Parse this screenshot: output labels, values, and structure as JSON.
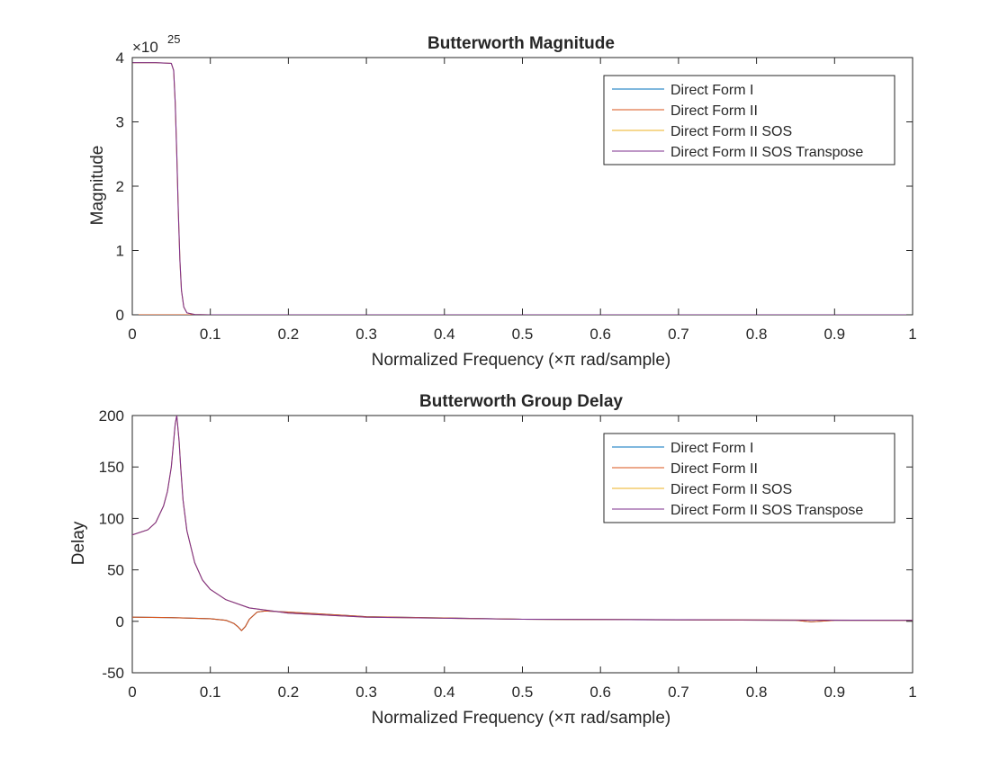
{
  "colors": {
    "direct_form_1": "#0072BD",
    "direct_form_2": "#D95319",
    "direct_form_2_sos": "#EDB120",
    "direct_form_2_sos_transpose": "#7E2F8E",
    "axes": "#262626",
    "background": "#ffffff"
  },
  "chart_data": [
    {
      "type": "line",
      "title": "Butterworth Magnitude",
      "xlabel": "Normalized Frequency (×π rad/sample)",
      "ylabel": "Magnitude",
      "exponent_label": "×10",
      "exponent_value": "25",
      "xlim": [
        0,
        1
      ],
      "ylim": [
        0,
        4
      ],
      "xticks": [
        0,
        0.1,
        0.2,
        0.3,
        0.4,
        0.5,
        0.6,
        0.7,
        0.8,
        0.9,
        1
      ],
      "xtick_labels": [
        "0",
        "0.1",
        "0.2",
        "0.3",
        "0.4",
        "0.5",
        "0.6",
        "0.7",
        "0.8",
        "0.9",
        "1"
      ],
      "yticks": [
        0,
        1,
        2,
        3,
        4
      ],
      "ytick_labels": [
        "0",
        "1",
        "2",
        "3",
        "4"
      ],
      "grid": false,
      "legend_position": "top-right",
      "series": [
        {
          "name": "Direct Form I",
          "color_key": "direct_form_1",
          "x": [
            0,
            1
          ],
          "y": [
            0.0,
            0.0
          ]
        },
        {
          "name": "Direct Form II",
          "color_key": "direct_form_2",
          "x": [
            0,
            1
          ],
          "y": [
            0.0,
            0.0
          ]
        },
        {
          "name": "Direct Form II SOS",
          "color_key": "direct_form_2_sos",
          "x": [
            0,
            0.03,
            0.05,
            0.053,
            0.055,
            0.057,
            0.059,
            0.061,
            0.063,
            0.066,
            0.07,
            0.08,
            0.1,
            0.2,
            0.5,
            1
          ],
          "y": [
            3.92,
            3.92,
            3.91,
            3.8,
            3.3,
            2.5,
            1.6,
            0.85,
            0.38,
            0.12,
            0.03,
            0.005,
            0.0,
            0.0,
            0.0,
            0.0
          ]
        },
        {
          "name": "Direct Form II SOS Transpose",
          "color_key": "direct_form_2_sos_transpose",
          "x": [
            0,
            0.03,
            0.05,
            0.053,
            0.055,
            0.057,
            0.059,
            0.061,
            0.063,
            0.066,
            0.07,
            0.08,
            0.1,
            0.2,
            0.5,
            1
          ],
          "y": [
            3.92,
            3.92,
            3.91,
            3.8,
            3.3,
            2.5,
            1.6,
            0.85,
            0.38,
            0.12,
            0.03,
            0.005,
            0.0,
            0.0,
            0.0,
            0.0
          ]
        }
      ]
    },
    {
      "type": "line",
      "title": "Butterworth Group Delay",
      "xlabel": "Normalized Frequency (×π rad/sample)",
      "ylabel": "Delay",
      "xlim": [
        0,
        1
      ],
      "ylim": [
        -50,
        200
      ],
      "xticks": [
        0,
        0.1,
        0.2,
        0.3,
        0.4,
        0.5,
        0.6,
        0.7,
        0.8,
        0.9,
        1
      ],
      "xtick_labels": [
        "0",
        "0.1",
        "0.2",
        "0.3",
        "0.4",
        "0.5",
        "0.6",
        "0.7",
        "0.8",
        "0.9",
        "1"
      ],
      "yticks": [
        -50,
        0,
        50,
        100,
        150,
        200
      ],
      "ytick_labels": [
        "-50",
        "0",
        "50",
        "100",
        "150",
        "200"
      ],
      "grid": false,
      "legend_position": "top-right",
      "series": [
        {
          "name": "Direct Form I",
          "color_key": "direct_form_1",
          "x": [
            0,
            0.05,
            0.1,
            0.12,
            0.13,
            0.135,
            0.14,
            0.145,
            0.15,
            0.16,
            0.17,
            0.2,
            0.3,
            0.5,
            0.85,
            0.87,
            0.9,
            1
          ],
          "y": [
            4,
            3.6,
            2.5,
            1,
            -2,
            -5,
            -9,
            -5,
            2,
            9,
            10,
            9,
            4.5,
            2,
            1,
            -0.5,
            1,
            1
          ]
        },
        {
          "name": "Direct Form II",
          "color_key": "direct_form_2",
          "x": [
            0,
            0.05,
            0.1,
            0.12,
            0.13,
            0.135,
            0.14,
            0.145,
            0.15,
            0.16,
            0.17,
            0.2,
            0.3,
            0.5,
            0.85,
            0.87,
            0.9,
            1
          ],
          "y": [
            4,
            3.6,
            2.5,
            1,
            -2,
            -5,
            -9,
            -5,
            2,
            9,
            10,
            9,
            4.5,
            2,
            1,
            -0.5,
            1,
            1
          ]
        },
        {
          "name": "Direct Form II SOS",
          "color_key": "direct_form_2_sos",
          "x": [
            0,
            0.02,
            0.03,
            0.04,
            0.045,
            0.05,
            0.053,
            0.055,
            0.057,
            0.06,
            0.062,
            0.065,
            0.07,
            0.08,
            0.09,
            0.1,
            0.12,
            0.15,
            0.2,
            0.3,
            0.4,
            0.5,
            0.7,
            1
          ],
          "y": [
            84,
            89,
            96,
            112,
            126,
            150,
            175,
            192,
            200,
            175,
            150,
            118,
            88,
            57,
            40,
            31,
            21,
            13,
            8,
            4,
            3,
            2,
            1.5,
            1
          ]
        },
        {
          "name": "Direct Form II SOS Transpose",
          "color_key": "direct_form_2_sos_transpose",
          "x": [
            0,
            0.02,
            0.03,
            0.04,
            0.045,
            0.05,
            0.053,
            0.055,
            0.057,
            0.06,
            0.062,
            0.065,
            0.07,
            0.08,
            0.09,
            0.1,
            0.12,
            0.15,
            0.2,
            0.3,
            0.4,
            0.5,
            0.7,
            1
          ],
          "y": [
            84,
            89,
            96,
            112,
            126,
            150,
            175,
            192,
            200,
            175,
            150,
            118,
            88,
            57,
            40,
            31,
            21,
            13,
            8,
            4,
            3,
            2,
            1.5,
            1
          ]
        }
      ]
    }
  ]
}
